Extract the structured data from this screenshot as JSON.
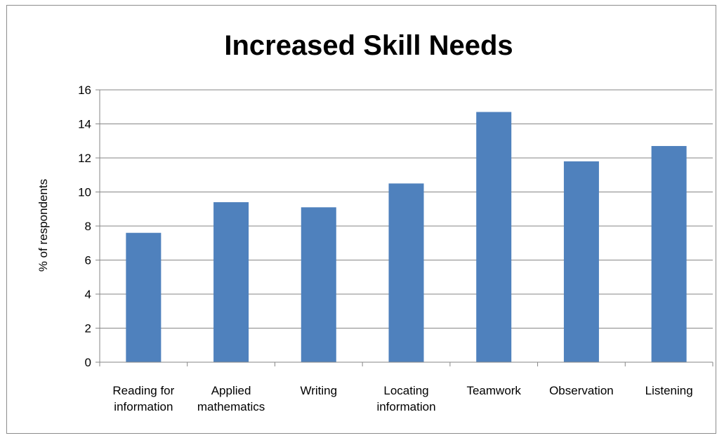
{
  "chart_data": {
    "type": "bar",
    "title": "Increased Skill Needs",
    "ylabel": "% of respondents",
    "xlabel": "",
    "categories": [
      [
        "Reading for",
        "information"
      ],
      [
        "Applied",
        "mathematics"
      ],
      [
        "Writing"
      ],
      [
        "Locating",
        "information"
      ],
      [
        "Teamwork"
      ],
      [
        "Observation"
      ],
      [
        "Listening"
      ]
    ],
    "values": [
      7.6,
      9.4,
      9.1,
      10.5,
      14.7,
      11.8,
      12.7
    ],
    "ylim": [
      0,
      16
    ],
    "yticks": [
      "0",
      "2",
      "4",
      "6",
      "8",
      "10",
      "12",
      "14",
      "16"
    ],
    "grid": true,
    "legend": "none",
    "colors": {
      "bar": "#4f81bd",
      "grid": "#868686",
      "axis": "#868686"
    }
  }
}
